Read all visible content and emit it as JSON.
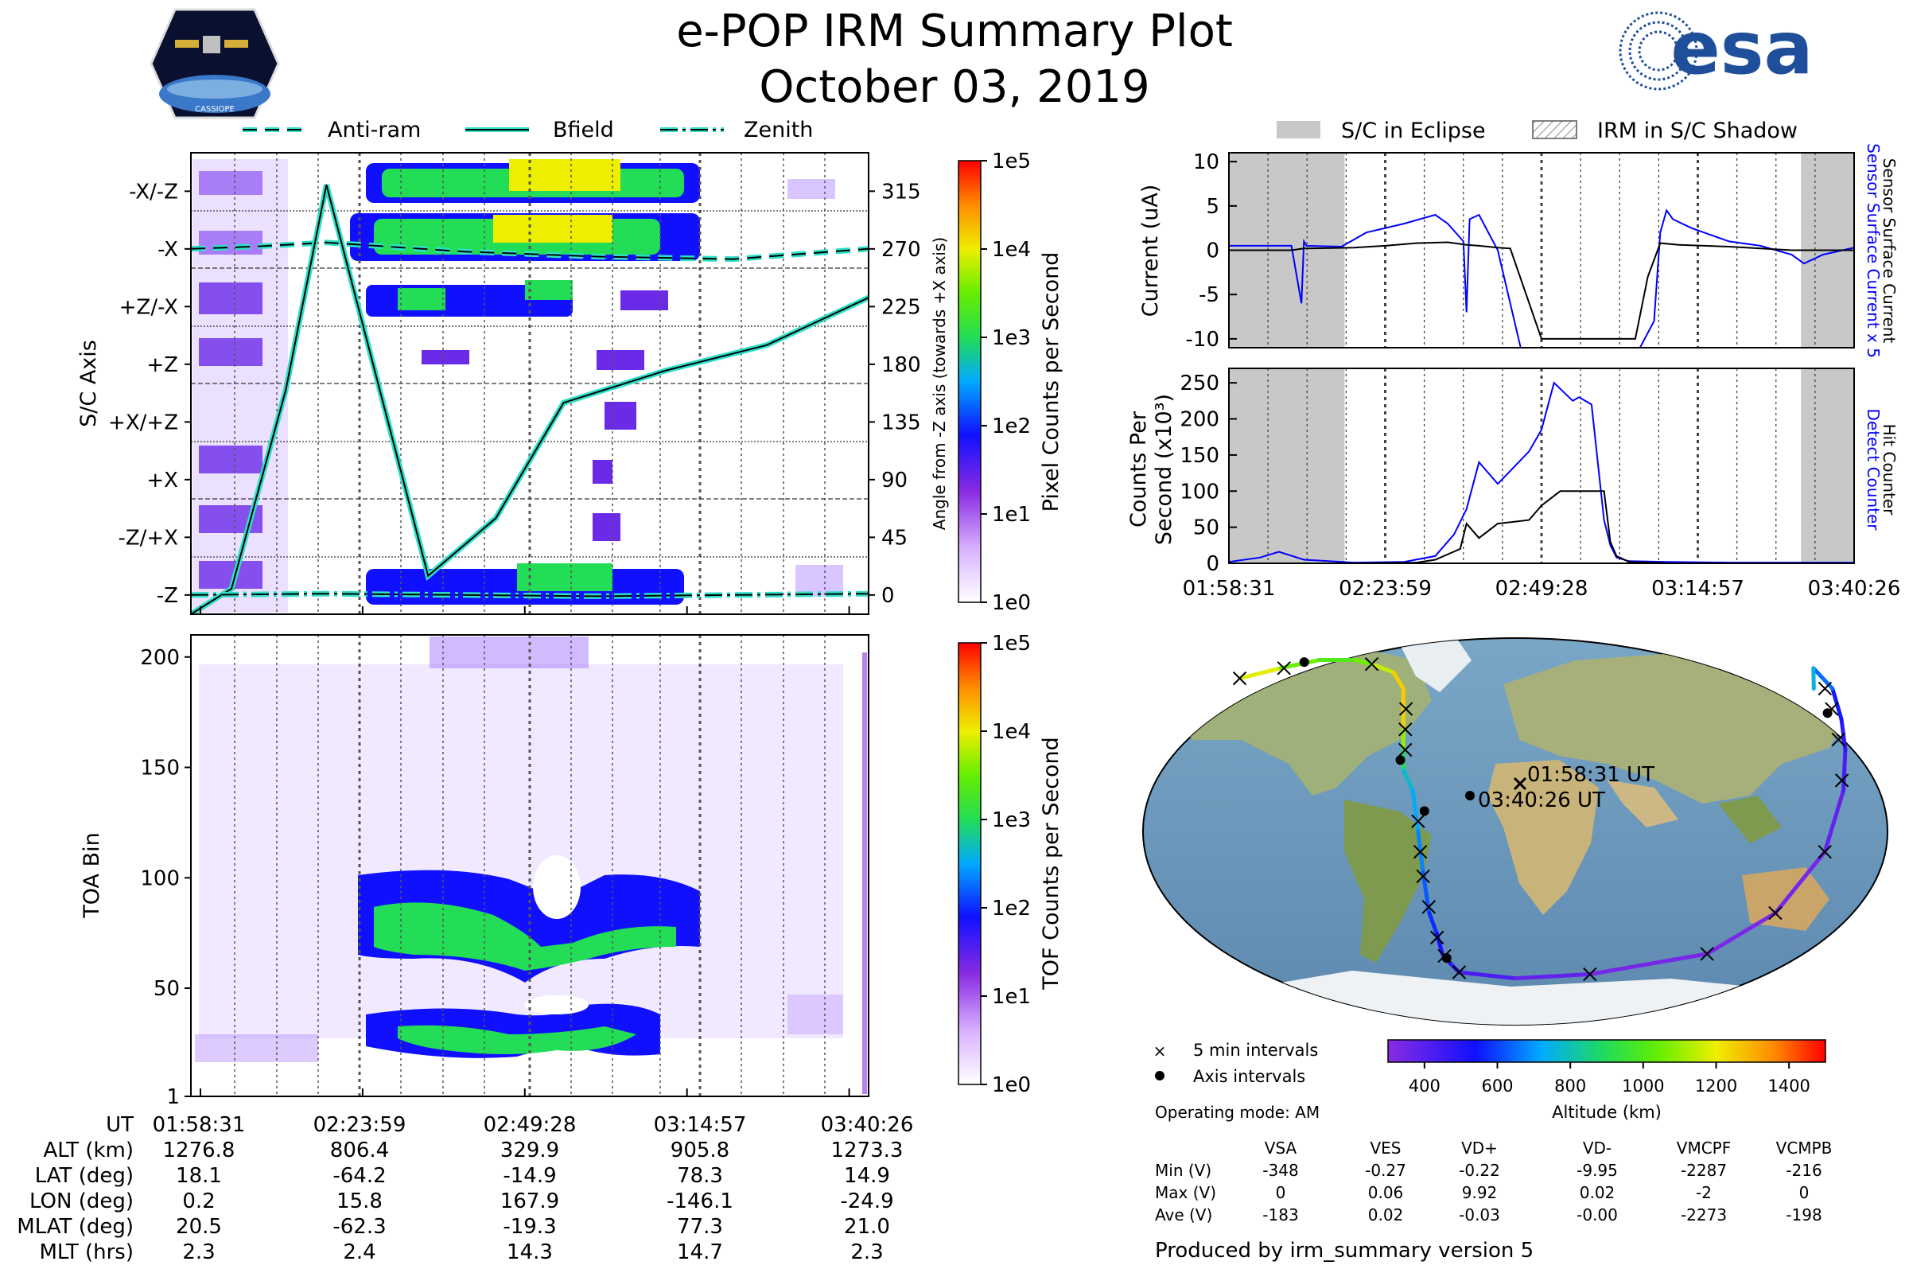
{
  "header": {
    "title": "e-POP IRM Summary Plot",
    "date": "October 03, 2019",
    "mission_logo_text": "CASSIOPE",
    "agency_logo_text": "esa"
  },
  "colors": {
    "bfield": "#2ee0c8",
    "eclipse": "#c8c8c8",
    "sensor_current": "#0000ff",
    "counter": "#000000",
    "spectrum_low": "#8a2be2",
    "spectrum_mid": "#33dd33",
    "spectrum_high": "#ffd000"
  },
  "chart_data": [
    {
      "id": "sc_axis_panel",
      "type": "heatmap",
      "title": "",
      "legend": [
        {
          "label": "Anti-ram",
          "style": "dashed"
        },
        {
          "label": "Bfield",
          "style": "solid"
        },
        {
          "label": "Zenith",
          "style": "dashdot"
        }
      ],
      "ylabel": "S/C Axis",
      "y_categories": [
        "-X/-Z",
        "-X",
        "+Z/-X",
        "+Z",
        "+X/+Z",
        "+X",
        "-Z/+X",
        "-Z"
      ],
      "y2label": "Angle from -Z axis (towards +X axis)",
      "y2_ticks": [
        315,
        270,
        225,
        180,
        135,
        90,
        45,
        0
      ],
      "y2lim": [
        -15,
        345
      ],
      "colorbar": {
        "label": "Pixel Counts per Second",
        "ticks": [
          "1e0",
          "1e1",
          "1e2",
          "1e3",
          "1e4",
          "1e5"
        ]
      },
      "series": [
        {
          "name": "Anti-ram",
          "x_frac": [
            0,
            0.1,
            0.2,
            0.4,
            0.6,
            0.8,
            1
          ],
          "angle": [
            270,
            272,
            275,
            268,
            264,
            262,
            270
          ]
        },
        {
          "name": "Bfield",
          "x_frac": [
            0,
            0.06,
            0.14,
            0.2,
            0.35,
            0.45,
            0.55,
            0.7,
            0.85,
            1
          ],
          "angle": [
            -15,
            5,
            160,
            320,
            15,
            60,
            150,
            175,
            195,
            232
          ]
        },
        {
          "name": "Zenith",
          "x_frac": [
            0,
            0.2,
            0.4,
            0.6,
            0.8,
            1
          ],
          "angle": [
            0,
            1,
            0,
            -1,
            0,
            1
          ]
        }
      ]
    },
    {
      "id": "toa_panel",
      "type": "heatmap",
      "ylabel": "TOA Bin",
      "y_ticks": [
        1,
        50,
        100,
        150,
        200
      ],
      "ylim": [
        1,
        210
      ],
      "colorbar": {
        "label": "TOF Counts per Second",
        "ticks": [
          "1e0",
          "1e1",
          "1e2",
          "1e3",
          "1e4",
          "1e5"
        ]
      }
    },
    {
      "id": "current_panel",
      "type": "line",
      "ylabel": "Current (uA)",
      "y_ticks": [
        10,
        5,
        0,
        -5,
        -10
      ],
      "ylim": [
        -11,
        11
      ],
      "right_labels": [
        {
          "text": "Sensor Surface Current x 5",
          "color": "#0000ff"
        },
        {
          "text": "Sensor Surface Current",
          "color": "#000000"
        }
      ],
      "legend": [
        {
          "label": "S/C in Eclipse"
        },
        {
          "label": "IRM in S/C Shadow"
        }
      ],
      "eclipse_frac": [
        [
          0,
          0.185
        ],
        [
          0.915,
          1
        ]
      ],
      "series": [
        {
          "name": "Sensor Surface Current x 5",
          "color": "#0000ff",
          "x_frac": [
            0,
            0.1,
            0.116,
            0.12,
            0.124,
            0.18,
            0.22,
            0.28,
            0.33,
            0.35,
            0.375,
            0.38,
            0.385,
            0.4,
            0.43,
            0.47,
            0.5,
            0.51,
            0.6,
            0.65,
            0.68,
            0.69,
            0.7,
            0.71,
            0.74,
            0.8,
            0.85,
            0.9,
            0.92,
            0.95,
            1
          ],
          "y": [
            0.5,
            0.5,
            -6,
            1,
            0.5,
            0.4,
            2,
            3,
            4,
            3,
            1,
            -7,
            3.5,
            4,
            0,
            -12,
            -12,
            -12,
            -12,
            -12,
            -8,
            2,
            4.5,
            3.5,
            2.5,
            1,
            0.5,
            -0.5,
            -1.5,
            -0.5,
            0.3
          ]
        },
        {
          "name": "Sensor Surface Current",
          "color": "#000000",
          "x_frac": [
            0,
            0.1,
            0.12,
            0.2,
            0.25,
            0.3,
            0.35,
            0.38,
            0.4,
            0.43,
            0.45,
            0.5,
            0.6,
            0.65,
            0.67,
            0.69,
            0.72,
            0.8,
            0.9,
            1
          ],
          "y": [
            0,
            0,
            0.2,
            0.3,
            0.5,
            0.8,
            0.9,
            0.6,
            0.5,
            0.3,
            0.2,
            -10,
            -10,
            -10,
            -3,
            0.8,
            0.6,
            0.4,
            0,
            0
          ]
        }
      ],
      "x_tick_labels": []
    },
    {
      "id": "counter_panel",
      "type": "line",
      "ylabel": "Counts Per Second (x10³)",
      "y_ticks": [
        250,
        200,
        150,
        100,
        50,
        0
      ],
      "ylim": [
        0,
        270
      ],
      "right_labels": [
        {
          "text": "Detect Counter",
          "color": "#0000ff"
        },
        {
          "text": "Hit Counter",
          "color": "#000000"
        }
      ],
      "eclipse_frac": [
        [
          0,
          0.185
        ],
        [
          0.915,
          1
        ]
      ],
      "series": [
        {
          "name": "Detect Counter",
          "color": "#0000ff",
          "x_frac": [
            0,
            0.05,
            0.08,
            0.12,
            0.2,
            0.28,
            0.33,
            0.36,
            0.38,
            0.4,
            0.43,
            0.48,
            0.5,
            0.52,
            0.55,
            0.56,
            0.58,
            0.6,
            0.61,
            0.62,
            0.64,
            0.7,
            0.8,
            0.9,
            1
          ],
          "y": [
            2,
            8,
            16,
            5,
            1,
            2,
            10,
            40,
            75,
            140,
            110,
            155,
            185,
            250,
            225,
            230,
            220,
            60,
            25,
            8,
            3,
            2,
            1,
            1,
            1
          ]
        },
        {
          "name": "Hit Counter",
          "color": "#000000",
          "x_frac": [
            0,
            0.2,
            0.3,
            0.33,
            0.37,
            0.38,
            0.4,
            0.43,
            0.48,
            0.5,
            0.53,
            0.6,
            0.61,
            0.62,
            0.64,
            0.7,
            1
          ],
          "y": [
            0,
            0,
            1,
            5,
            20,
            55,
            35,
            55,
            60,
            80,
            100,
            100,
            30,
            10,
            2,
            0,
            0
          ]
        }
      ]
    },
    {
      "id": "orbit_map",
      "type": "scatter",
      "annotations": [
        "01:58:31 UT",
        "03:40:26 UT"
      ],
      "legend": [
        {
          "marker": "x",
          "label": "5 min intervals"
        },
        {
          "marker": "dot",
          "label": "Axis intervals"
        }
      ],
      "colorbar": {
        "label": "Altitude (km)",
        "ticks": [
          400,
          600,
          800,
          1000,
          1200,
          1400
        ],
        "range": [
          300,
          1500
        ]
      },
      "track": {
        "lon": [
          -150,
          -130,
          -110,
          -90,
          -80,
          -67,
          -60,
          -57,
          -56,
          -55,
          -50,
          -47,
          -45,
          -43,
          -40,
          -38,
          -35,
          -30,
          0,
          40,
          100,
          130,
          150,
          160,
          165,
          168,
          170,
          165,
          160
        ],
        "lat": [
          75,
          80,
          84,
          84,
          82,
          78,
          70,
          50,
          40,
          30,
          20,
          0,
          -20,
          -40,
          -50,
          -60,
          -64,
          -69,
          -72,
          -70,
          -60,
          -40,
          -10,
          20,
          40,
          55,
          70,
          80,
          70
        ],
        "alt": [
          1270,
          1100,
          1000,
          1000,
          1100,
          1200,
          1300,
          1200,
          1000,
          800,
          750,
          700,
          650,
          600,
          550,
          500,
          500,
          450,
          400,
          350,
          330,
          330,
          350,
          400,
          450,
          500,
          600,
          700,
          800
        ]
      },
      "marks_x": [
        [
          -150,
          75
        ],
        [
          -128,
          80
        ],
        [
          -80,
          82
        ],
        [
          -57,
          60
        ],
        [
          -56,
          50
        ],
        [
          -55,
          40
        ],
        [
          -47,
          5
        ],
        [
          -46,
          -10
        ],
        [
          -45,
          -22
        ],
        [
          -43,
          -37
        ],
        [
          -40,
          -52
        ],
        [
          -37,
          -61
        ],
        [
          -30,
          -69
        ],
        [
          40,
          -70
        ],
        [
          100,
          -60
        ],
        [
          130,
          -40
        ],
        [
          150,
          -10
        ],
        [
          160,
          25
        ],
        [
          163,
          45
        ],
        [
          165,
          60
        ],
        [
          166,
          70
        ]
      ],
      "marks_dot": [
        [
          -118,
          83
        ],
        [
          -57,
          35
        ],
        [
          -44,
          10
        ],
        [
          -36,
          -62
        ],
        [
          162,
          58
        ]
      ]
    }
  ],
  "x_time_labels": [
    "01:58:31",
    "02:23:59",
    "02:49:28",
    "03:14:57",
    "03:40:26"
  ],
  "orbit_table": {
    "row_labels": [
      "UT",
      "ALT (km)",
      "LAT (deg)",
      "LON (deg)",
      "MLAT (deg)",
      "MLT (hrs)"
    ],
    "columns": [
      [
        "01:58:31",
        "1276.8",
        "18.1",
        "0.2",
        "20.5",
        "2.3"
      ],
      [
        "02:23:59",
        "806.4",
        "-64.2",
        "15.8",
        "-62.3",
        "2.4"
      ],
      [
        "02:49:28",
        "329.9",
        "-14.9",
        "167.9",
        "-19.3",
        "14.3"
      ],
      [
        "03:14:57",
        "905.8",
        "78.3",
        "-146.1",
        "77.3",
        "14.7"
      ],
      [
        "03:40:26",
        "1273.3",
        "14.9",
        "-24.9",
        "21.0",
        "2.3"
      ]
    ]
  },
  "operating_mode": "Operating mode: AM",
  "voltage_table": {
    "headers": [
      "VSA",
      "VES",
      "VD+",
      "VD-",
      "VMCPF",
      "VCMPB"
    ],
    "rows": [
      {
        "label": "Min (V)",
        "values": [
          "-348",
          "-0.27",
          "-0.22",
          "-9.95",
          "-2287",
          "-216"
        ]
      },
      {
        "label": "Max (V)",
        "values": [
          "0",
          "0.06",
          "9.92",
          "0.02",
          "-2",
          "0"
        ]
      },
      {
        "label": "Ave (V)",
        "values": [
          "-183",
          "0.02",
          "-0.03",
          "-0.00",
          "-2273",
          "-198"
        ]
      }
    ]
  },
  "footer": "Produced by irm_summary version 5"
}
